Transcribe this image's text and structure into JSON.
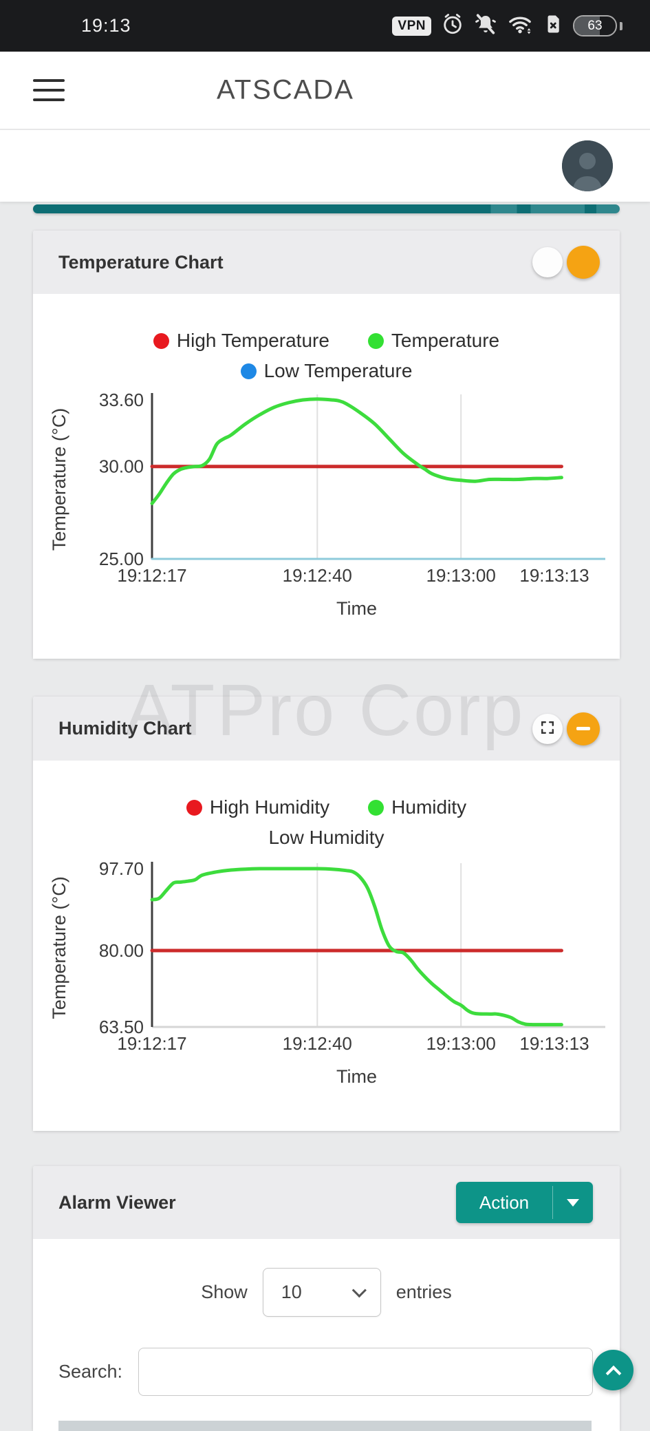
{
  "status_bar": {
    "time": "19:13",
    "vpn_label": "VPN",
    "battery_percent": "63"
  },
  "header": {
    "app_title": "ATSCADA"
  },
  "watermark": {
    "text": "ATPro Corp"
  },
  "cards": {
    "temperature": {
      "title": "Temperature Chart"
    },
    "humidity": {
      "title": "Humidity Chart"
    },
    "alarm": {
      "title": "Alarm Viewer",
      "action_label": "Action",
      "show_label": "Show",
      "page_size": "10",
      "entries_label": "entries",
      "search_label": "Search:"
    }
  },
  "colors": {
    "accent_teal": "#0d9488",
    "progress_teal": "#0e6e74",
    "orange_button": "#f5a313",
    "series_red": "#cc2b2b",
    "series_green": "#3ddc3d",
    "series_lowline": "#8ecbdb",
    "legend_red": "#e8191f",
    "legend_green": "#33e033",
    "legend_blue": "#1e88e5"
  },
  "chart_data": [
    {
      "type": "line",
      "title": "Temperature Chart",
      "xlabel": "Time",
      "ylabel": "Temperature (°C)",
      "xlim_seconds": [
        17,
        73
      ],
      "ylim": [
        25.0,
        33.6
      ],
      "grid_on": true,
      "grid_seconds": [
        40,
        60
      ],
      "baseline_color": "#8ecbdb",
      "x_ticks": [
        {
          "label": "19:12:17",
          "seconds": 17
        },
        {
          "label": "19:12:40",
          "seconds": 40
        },
        {
          "label": "19:13:00",
          "seconds": 60
        },
        {
          "label": "19:13:13",
          "seconds": 73
        }
      ],
      "y_ticks": [
        {
          "label": "33.60",
          "value": 33.6
        },
        {
          "label": "30.00",
          "value": 30.0
        },
        {
          "label": "25.00",
          "value": 25.0
        }
      ],
      "legend": [
        {
          "label": "High Temperature",
          "color": "#e8191f"
        },
        {
          "label": "Temperature",
          "color": "#33e033"
        },
        {
          "label": "Low Temperature",
          "color": "#1e88e5"
        }
      ],
      "series": [
        {
          "name": "High Temperature",
          "color": "#cc2b2b",
          "width": 5,
          "x": [
            17,
            74
          ],
          "y": [
            30.0,
            30.0
          ]
        },
        {
          "name": "Temperature",
          "color": "#3ddc3d",
          "width": 5,
          "x": [
            17,
            18,
            19,
            20,
            21,
            22,
            23,
            24,
            25,
            26,
            27,
            28,
            30,
            32,
            34,
            36,
            38,
            40,
            42,
            43,
            44,
            46,
            48,
            50,
            52,
            54,
            55,
            56,
            58,
            60,
            62,
            64,
            66,
            68,
            70,
            72,
            74
          ],
          "y": [
            28.0,
            28.5,
            29.1,
            29.6,
            29.85,
            29.95,
            30.0,
            30.05,
            30.4,
            31.2,
            31.5,
            31.7,
            32.3,
            32.8,
            33.2,
            33.45,
            33.6,
            33.65,
            33.6,
            33.55,
            33.4,
            32.9,
            32.3,
            31.5,
            30.7,
            30.1,
            29.85,
            29.6,
            29.35,
            29.25,
            29.2,
            29.3,
            29.3,
            29.3,
            29.35,
            29.35,
            29.4
          ]
        },
        {
          "name": "Low Temperature",
          "color": "#8ecbdb",
          "width": 3,
          "x": [
            17,
            74
          ],
          "y": [
            25.0,
            25.0
          ]
        }
      ]
    },
    {
      "type": "line",
      "title": "Humidity Chart",
      "xlabel": "Time",
      "ylabel": "Temperature (°C)",
      "xlim_seconds": [
        17,
        73
      ],
      "ylim": [
        63.5,
        97.7
      ],
      "grid_on": true,
      "grid_seconds": [
        40,
        60
      ],
      "baseline_color": "#d6d6d6",
      "x_ticks": [
        {
          "label": "19:12:17",
          "seconds": 17
        },
        {
          "label": "19:12:40",
          "seconds": 40
        },
        {
          "label": "19:13:00",
          "seconds": 60
        },
        {
          "label": "19:13:13",
          "seconds": 73
        }
      ],
      "y_ticks": [
        {
          "label": "97.70",
          "value": 97.7
        },
        {
          "label": "80.00",
          "value": 80.0
        },
        {
          "label": "63.50",
          "value": 63.5
        }
      ],
      "legend": [
        {
          "label": "High Humidity",
          "color": "#e8191f"
        },
        {
          "label": "Humidity",
          "color": "#33e033"
        },
        {
          "label": "Low Humidity",
          "color": null
        }
      ],
      "series": [
        {
          "name": "High Humidity",
          "color": "#cc2b2b",
          "width": 5,
          "x": [
            17,
            74
          ],
          "y": [
            80.0,
            80.0
          ]
        },
        {
          "name": "Humidity",
          "color": "#3ddc3d",
          "width": 5,
          "x": [
            17,
            18,
            19,
            20,
            21,
            22,
            23,
            24,
            26,
            28,
            30,
            32,
            34,
            36,
            38,
            40,
            42,
            44,
            45,
            46,
            47,
            48,
            49,
            50,
            51,
            52,
            53,
            54,
            55,
            56,
            57,
            58,
            59,
            60,
            61,
            62,
            64,
            65,
            66,
            67,
            68,
            69,
            70,
            72,
            74
          ],
          "y": [
            91.0,
            91.3,
            93.0,
            94.6,
            94.8,
            95.0,
            95.3,
            96.3,
            97.0,
            97.4,
            97.6,
            97.7,
            97.7,
            97.7,
            97.7,
            97.7,
            97.6,
            97.3,
            97.0,
            95.8,
            93.5,
            89.5,
            84.5,
            81.0,
            79.8,
            79.5,
            78.0,
            76.0,
            74.3,
            72.8,
            71.5,
            70.2,
            69.0,
            68.2,
            67.0,
            66.4,
            66.3,
            66.3,
            66.0,
            65.5,
            64.6,
            64.1,
            64.0,
            64.0,
            64.0
          ]
        }
      ]
    }
  ]
}
